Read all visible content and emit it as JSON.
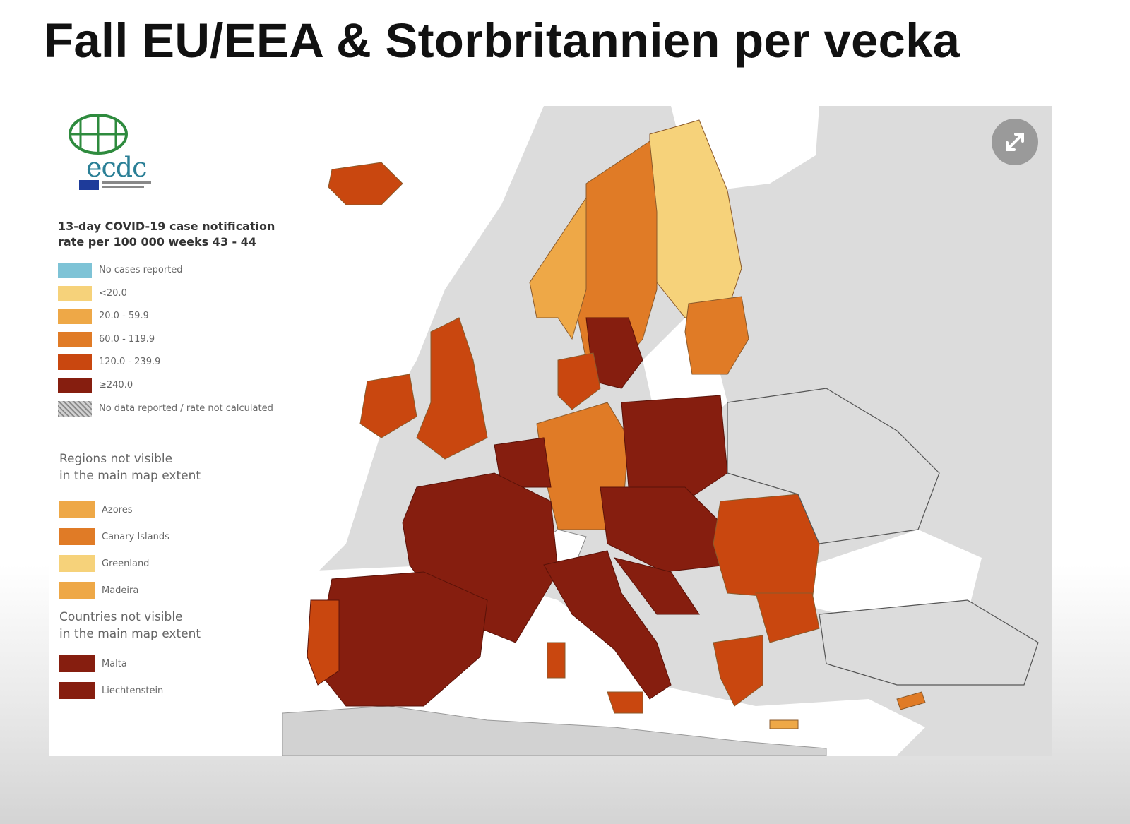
{
  "slide": {
    "title": "Fall EU/EEA & Storbritannien per vecka"
  },
  "logo": {
    "text": "ecdc",
    "icon": "globe-icon"
  },
  "legend": {
    "title_line1": "13-day COVID-19 case notification",
    "title_line2": "rate per 100 000 weeks 43 - 44",
    "items": [
      {
        "label": "No cases reported",
        "color": "#7ec3d6"
      },
      {
        "label": "<20.0",
        "color": "#f6d27a"
      },
      {
        "label": "20.0 - 59.9",
        "color": "#eea847"
      },
      {
        "label": "60.0 - 119.9",
        "color": "#e07b26"
      },
      {
        "label": "120.0 - 239.9",
        "color": "#c9470f"
      },
      {
        "label": "≥240.0",
        "color": "#861e0f"
      },
      {
        "label": "No data reported / rate not calculated",
        "color": "hatched"
      }
    ]
  },
  "regions_not_visible": {
    "heading_line1": "Regions not visible",
    "heading_line2": "in the main map extent",
    "items": [
      {
        "label": "Azores",
        "color": "#eea847"
      },
      {
        "label": "Canary Islands",
        "color": "#e07b26"
      },
      {
        "label": "Greenland",
        "color": "#f6d27a"
      },
      {
        "label": "Madeira",
        "color": "#eea847"
      }
    ]
  },
  "countries_not_visible": {
    "heading_line1": "Countries not visible",
    "heading_line2": "in the main map extent",
    "items": [
      {
        "label": "Malta",
        "color": "#861e0f"
      },
      {
        "label": "Liechtenstein",
        "color": "#861e0f"
      }
    ]
  },
  "controls": {
    "expand_icon": "expand-icon"
  }
}
